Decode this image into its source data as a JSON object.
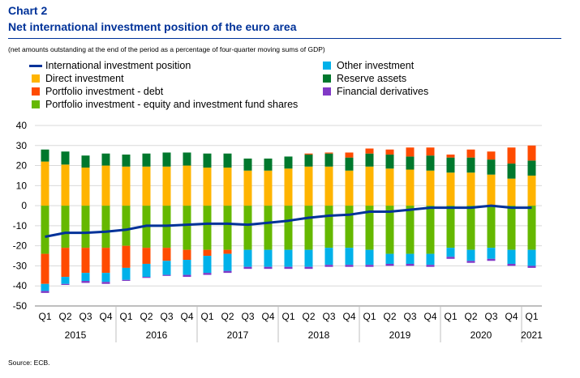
{
  "header": {
    "label": "Chart 2",
    "title": "Net international investment position of the euro area",
    "subtitle": "(net amounts outstanding at the end of the period as a percentage of four-quarter moving sums of GDP)"
  },
  "source": "Source: ECB.",
  "chart_data": {
    "type": "bar",
    "stacked": true,
    "ylim": [
      -50,
      40
    ],
    "yticks": [
      -50,
      -40,
      -30,
      -20,
      -10,
      0,
      10,
      20,
      30,
      40
    ],
    "grid": true,
    "legend_position": "top",
    "categories": [
      "Q1",
      "Q2",
      "Q3",
      "Q4",
      "Q1",
      "Q2",
      "Q3",
      "Q4",
      "Q1",
      "Q2",
      "Q3",
      "Q4",
      "Q1",
      "Q2",
      "Q3",
      "Q4",
      "Q1",
      "Q2",
      "Q3",
      "Q4",
      "Q1",
      "Q2",
      "Q3",
      "Q4",
      "Q1"
    ],
    "years": [
      {
        "label": "2015",
        "start": 0,
        "end": 3
      },
      {
        "label": "2016",
        "start": 4,
        "end": 7
      },
      {
        "label": "2017",
        "start": 8,
        "end": 11
      },
      {
        "label": "2018",
        "start": 12,
        "end": 15
      },
      {
        "label": "2019",
        "start": 16,
        "end": 19
      },
      {
        "label": "2020",
        "start": 20,
        "end": 23
      },
      {
        "label": "2021",
        "start": 24,
        "end": 24
      }
    ],
    "series": [
      {
        "name": "Direct investment",
        "color": "#ffb400",
        "values": [
          22,
          20.5,
          19,
          20,
          19.5,
          19.5,
          19.5,
          20,
          19,
          19,
          17.5,
          17.5,
          18.5,
          19.5,
          19.5,
          17.5,
          19.5,
          18.5,
          18,
          17.5,
          16.5,
          16.5,
          15.5,
          13.5,
          15
        ]
      },
      {
        "name": "Reserve assets",
        "color": "#00782d",
        "values": [
          6,
          6.5,
          6,
          6,
          6,
          6.5,
          7,
          6.5,
          7,
          7,
          6,
          6,
          6,
          6,
          6.5,
          6.5,
          6.5,
          7,
          6.5,
          7.5,
          7.5,
          7.5,
          7.5,
          7.5,
          7.5
        ]
      },
      {
        "name": "Portfolio investment - debt",
        "color": "#ff4b00",
        "values": [
          0,
          0,
          0,
          0,
          0,
          0,
          0,
          0,
          0,
          0,
          0,
          0,
          0,
          0.5,
          0.5,
          2.5,
          2.5,
          2.5,
          4.5,
          4,
          1.5,
          4,
          4,
          8,
          7.5
        ]
      },
      {
        "name": "Portfolio investment - equity and investment fund shares",
        "color": "#65b800",
        "values": [
          -24,
          -21,
          -21,
          -21,
          -20,
          -21,
          -21,
          -22,
          -22,
          -22,
          -22,
          -22,
          -22,
          -22,
          -21,
          -21,
          -22,
          -24,
          -24,
          -24,
          -21,
          -22,
          -21,
          -22,
          -22
        ]
      },
      {
        "name": "Portfolio investment - debt",
        "color": "#ff4b00",
        "values": [
          -15,
          -14.5,
          -12.5,
          -12.5,
          -11,
          -8,
          -6.5,
          -5,
          -3,
          -2,
          0,
          0,
          0,
          0,
          0,
          0,
          0,
          0,
          0,
          0,
          0,
          0,
          0,
          0,
          0
        ]
      },
      {
        "name": "Other investment",
        "color": "#00b1ea",
        "values": [
          -3.5,
          -3.5,
          -4,
          -4.5,
          -6,
          -6.5,
          -7,
          -7.5,
          -8.5,
          -8.5,
          -8.5,
          -8.5,
          -8.5,
          -8.5,
          -8.5,
          -8.5,
          -7.5,
          -5,
          -5,
          -5.5,
          -4.5,
          -5.5,
          -5.5,
          -7,
          -8
        ]
      },
      {
        "name": "Financial derivatives",
        "color": "#8139c6",
        "values": [
          -1,
          -0.5,
          -1,
          -1,
          -0.5,
          -0.5,
          -0.5,
          -1,
          -1,
          -1,
          -1,
          -1,
          -1,
          -1,
          -1,
          -1,
          -1,
          -1,
          -1,
          -1,
          -1,
          -1,
          -1,
          -1,
          -1
        ]
      }
    ],
    "line": {
      "name": "International investment position",
      "color": "#003299",
      "values": [
        -15.5,
        -13.5,
        -13.5,
        -13,
        -12,
        -10,
        -10,
        -9.5,
        -9,
        -9,
        -9.5,
        -8.5,
        -7.5,
        -6,
        -5,
        -4.5,
        -3,
        -3,
        -2,
        -1,
        -1,
        -1,
        0,
        -1,
        -1
      ]
    }
  },
  "legend": [
    {
      "label": "International investment position",
      "kind": "line",
      "color": "#003299"
    },
    {
      "label": "Direct investment",
      "kind": "box",
      "color": "#ffb400"
    },
    {
      "label": "Portfolio investment - debt",
      "kind": "box",
      "color": "#ff4b00"
    },
    {
      "label": "Portfolio investment - equity and investment fund shares",
      "kind": "box",
      "color": "#65b800"
    },
    {
      "label": "Other investment",
      "kind": "box",
      "color": "#00b1ea"
    },
    {
      "label": "Reserve assets",
      "kind": "box",
      "color": "#00782d"
    },
    {
      "label": "Financial derivatives",
      "kind": "box",
      "color": "#8139c6"
    }
  ]
}
